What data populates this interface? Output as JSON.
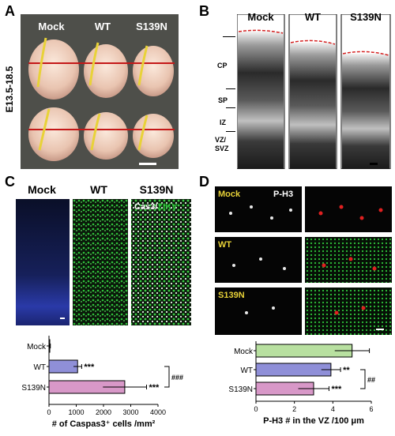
{
  "panel_a": {
    "letter": "A",
    "columns": [
      "Mock",
      "WT",
      "S139N"
    ],
    "side_label": "E13.5-18.5"
  },
  "panel_b": {
    "letter": "B",
    "columns": [
      "Mock",
      "WT",
      "S139N"
    ],
    "layers": [
      "CP",
      "SP",
      "IZ",
      "VZ/\nSVZ"
    ]
  },
  "panel_c": {
    "letter": "C",
    "columns": [
      "Mock",
      "WT",
      "S139N"
    ],
    "stain_white": "Cas3/",
    "stain_green": "ZIKV"
  },
  "panel_d": {
    "letter": "D",
    "marker": "P-H3",
    "row_labels": [
      "Mock",
      "WT",
      "S139N"
    ]
  },
  "colors": {
    "mock_bar_c": "#ffffff",
    "wt_bar_c": "#8f8fd8",
    "s139n_bar_c": "#d898c8",
    "mock_bar_d": "#b8e0a0",
    "wt_bar_d": "#8f8fd8",
    "s139n_bar_d": "#d898c8",
    "zikv_green": "#2ec43a",
    "ph3_red": "#e02020",
    "dapi_blue": "#2a3aa8"
  },
  "chart_data": [
    {
      "type": "bar",
      "orientation": "horizontal",
      "categories": [
        "Mock",
        "WT",
        "S139N"
      ],
      "values": [
        30,
        1050,
        2780
      ],
      "errors": [
        20,
        150,
        800
      ],
      "significance": [
        "",
        "***",
        "***"
      ],
      "bracket_label": "###",
      "xlabel": "# of Caspas3⁺ cells /mm²",
      "xlim": [
        0,
        4000
      ],
      "xticks": [
        "0",
        "1000",
        "2000",
        "3000",
        "4000"
      ]
    },
    {
      "type": "bar",
      "orientation": "horizontal",
      "categories": [
        "Mock",
        "WT",
        "S139N"
      ],
      "values": [
        5.0,
        3.9,
        3.0
      ],
      "errors": [
        0.9,
        0.5,
        0.8
      ],
      "significance": [
        "",
        "**",
        "***"
      ],
      "bracket_label": "##",
      "xlabel": "P-H3 # in the VZ /100 μm",
      "xlim": [
        0,
        6
      ],
      "xticks": [
        "0",
        "2",
        "4",
        "6"
      ]
    }
  ]
}
